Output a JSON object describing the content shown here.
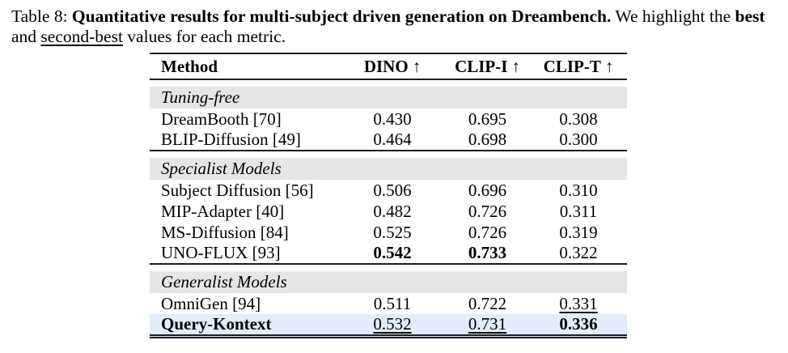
{
  "colors": {
    "rule": "#1c1c1c",
    "section-band": "#e5e5e5",
    "highlight-row": "#e3ecfa"
  },
  "caption": {
    "label": "Table 8:",
    "title_bold": "Quantitative results for multi-subject driven generation on Dreambench.",
    "after_title": "We highlight the",
    "best_word": "best",
    "mid_word": "and",
    "second_word": "second-best",
    "end_text": "values for each metric."
  },
  "table": {
    "columns": [
      {
        "label": "Method",
        "arrow": ""
      },
      {
        "label": "DINO",
        "arrow": "↑"
      },
      {
        "label": "CLIP-I",
        "arrow": "↑"
      },
      {
        "label": "CLIP-T",
        "arrow": "↑"
      }
    ],
    "sections": [
      {
        "label": "Tuning-free",
        "rows": [
          {
            "method": {
              "v": "DreamBooth [70]",
              "c": ""
            },
            "cells": [
              {
                "v": "0.430",
                "c": ""
              },
              {
                "v": "0.695",
                "c": ""
              },
              {
                "v": "0.308",
                "c": ""
              }
            ]
          },
          {
            "method": {
              "v": "BLIP-Diffusion [49]",
              "c": ""
            },
            "cells": [
              {
                "v": "0.464",
                "c": ""
              },
              {
                "v": "0.698",
                "c": ""
              },
              {
                "v": "0.300",
                "c": ""
              }
            ]
          }
        ]
      },
      {
        "label": "Specialist Models",
        "rows": [
          {
            "method": {
              "v": "Subject Diffusion [56]",
              "c": ""
            },
            "cells": [
              {
                "v": "0.506",
                "c": ""
              },
              {
                "v": "0.696",
                "c": ""
              },
              {
                "v": "0.310",
                "c": ""
              }
            ]
          },
          {
            "method": {
              "v": "MIP-Adapter [40]",
              "c": ""
            },
            "cells": [
              {
                "v": "0.482",
                "c": ""
              },
              {
                "v": "0.726",
                "c": ""
              },
              {
                "v": "0.311",
                "c": ""
              }
            ]
          },
          {
            "method": {
              "v": "MS-Diffusion [84]",
              "c": ""
            },
            "cells": [
              {
                "v": "0.525",
                "c": ""
              },
              {
                "v": "0.726",
                "c": ""
              },
              {
                "v": "0.319",
                "c": ""
              }
            ]
          },
          {
            "method": {
              "v": "UNO-FLUX [93]",
              "c": ""
            },
            "cells": [
              {
                "v": "0.542",
                "c": "best"
              },
              {
                "v": "0.733",
                "c": "best"
              },
              {
                "v": "0.322",
                "c": ""
              }
            ]
          }
        ]
      },
      {
        "label": "Generalist Models",
        "rows": [
          {
            "method": {
              "v": "OmniGen [94]",
              "c": ""
            },
            "cells": [
              {
                "v": "0.511",
                "c": ""
              },
              {
                "v": "0.722",
                "c": ""
              },
              {
                "v": "0.331",
                "c": "second"
              }
            ]
          },
          {
            "method": {
              "v": "Query-Kontext",
              "c": "best"
            },
            "cells": [
              {
                "v": "0.532",
                "c": "second"
              },
              {
                "v": "0.731",
                "c": "second"
              },
              {
                "v": "0.336",
                "c": "best"
              }
            ]
          }
        ]
      }
    ]
  }
}
